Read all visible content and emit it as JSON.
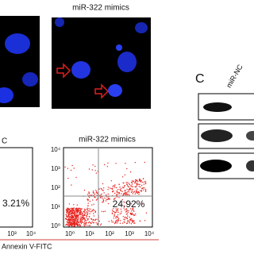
{
  "figure": {
    "microscopy": {
      "label": "miR-322 mimics"
    },
    "flow": {
      "left_partial": {
        "label_fragment": "C",
        "percent": "3.21%",
        "x_ticks": [
          "10³",
          "10⁴"
        ]
      },
      "right": {
        "label": "miR-322 mimics",
        "percent": "24.92%",
        "y_ticks": [
          "10⁴",
          "10³",
          "10²",
          "10¹",
          "10⁰"
        ],
        "x_ticks": [
          "10⁰",
          "10¹",
          "10²",
          "10³",
          "10⁴"
        ]
      },
      "x_axis_label": "Annexin V-FITC"
    },
    "blot": {
      "panel": "C",
      "lane_label": "miR-NC"
    }
  }
}
